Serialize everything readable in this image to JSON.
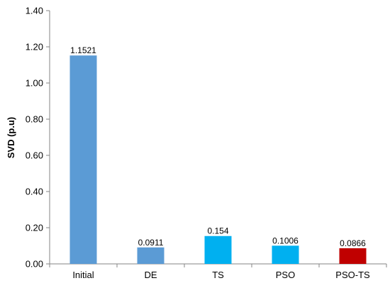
{
  "chart_data": {
    "type": "bar",
    "title": "",
    "xlabel": "",
    "ylabel": "SVD (p.u)",
    "ylim": [
      0,
      1.4
    ],
    "ytick_step": 0.2,
    "ytick_decimals": 2,
    "grid": false,
    "categories": [
      "Initial",
      "DE",
      "TS",
      "PSO",
      "PSO-TS"
    ],
    "values": [
      1.1521,
      0.0911,
      0.154,
      0.1006,
      0.0866
    ],
    "data_labels": [
      "1.1521",
      "0.0911",
      "0.154",
      "0.1006",
      "0.0866"
    ],
    "bar_colors": [
      "#5b9bd5",
      "#5b9bd5",
      "#00b0f0",
      "#00b0f0",
      "#c00000"
    ]
  }
}
